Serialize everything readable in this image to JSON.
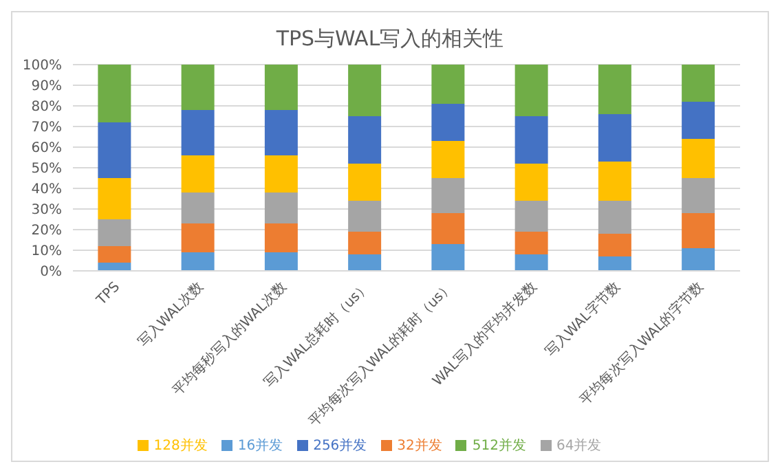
{
  "chart_data": {
    "type": "bar",
    "title": "TPS与WAL写入的相关性",
    "stacked": true,
    "categories": [
      "TPS",
      "写入WAL次数",
      "平均每秒写入的WAL次数",
      "写入WAL总耗时（us）",
      "平均每次写入WAL的耗时（us）",
      "WAL写入的平均并发数",
      "写入WAL字节数",
      "平均每次写入WAL的字节数"
    ],
    "series": [
      {
        "name": "16并发",
        "color": "#5b9bd5",
        "values": [
          4,
          9,
          9,
          8,
          13,
          8,
          7,
          11
        ]
      },
      {
        "name": "32并发",
        "color": "#ed7d31",
        "values": [
          8,
          14,
          14,
          11,
          15,
          11,
          11,
          17
        ]
      },
      {
        "name": "64并发",
        "color": "#a5a5a5",
        "values": [
          13,
          15,
          15,
          15,
          17,
          15,
          16,
          17
        ]
      },
      {
        "name": "128并发",
        "color": "#ffc000",
        "values": [
          20,
          18,
          18,
          18,
          18,
          18,
          19,
          19
        ]
      },
      {
        "name": "256并发",
        "color": "#4472c4",
        "values": [
          27,
          22,
          22,
          23,
          18,
          23,
          23,
          18
        ]
      },
      {
        "name": "512并发",
        "color": "#70ad47",
        "values": [
          28,
          22,
          22,
          25,
          19,
          25,
          24,
          18
        ]
      }
    ],
    "ylim": [
      0,
      100
    ],
    "yticks": [
      {
        "value": 0,
        "label": "0%"
      },
      {
        "value": 10,
        "label": "10%"
      },
      {
        "value": 20,
        "label": "20%"
      },
      {
        "value": 30,
        "label": "30%"
      },
      {
        "value": 40,
        "label": "40%"
      },
      {
        "value": 50,
        "label": "50%"
      },
      {
        "value": 60,
        "label": "60%"
      },
      {
        "value": 70,
        "label": "70%"
      },
      {
        "value": 80,
        "label": "80%"
      },
      {
        "value": 90,
        "label": "90%"
      },
      {
        "value": 100,
        "label": "100%"
      }
    ],
    "grid": "y",
    "legend": "bottom"
  }
}
